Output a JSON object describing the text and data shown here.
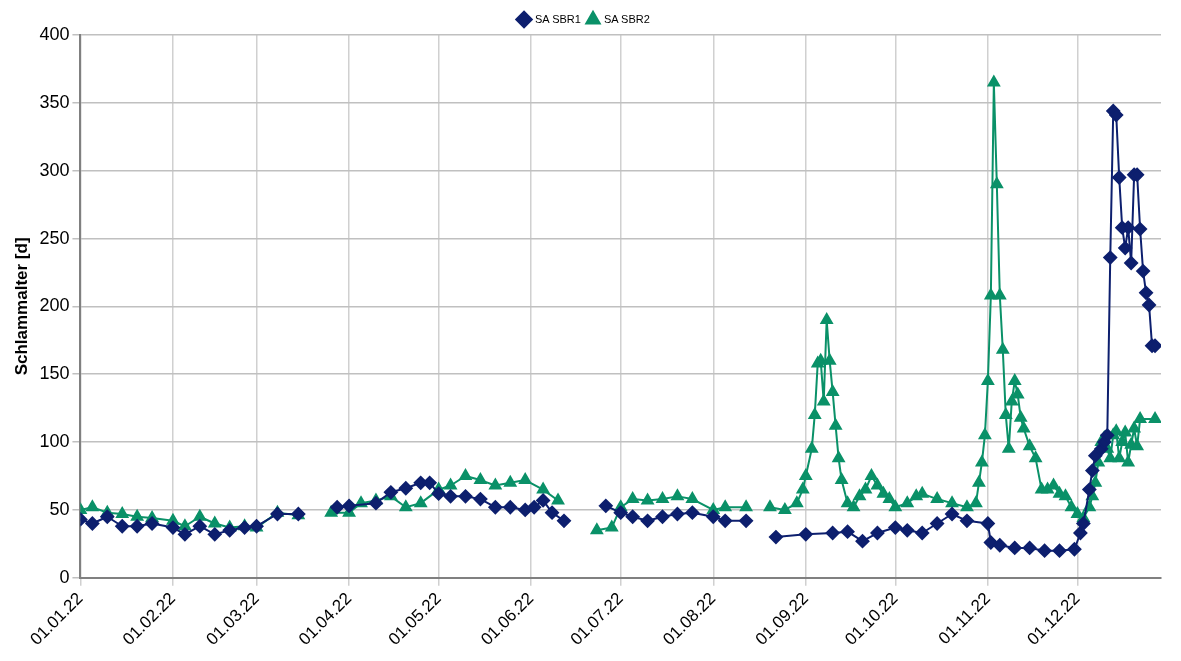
{
  "chart_data": {
    "type": "line",
    "ylabel": "Schlammalter [d]",
    "legend": "top",
    "grid": true,
    "xlim": [
      "2022-01-01",
      "2022-12-29"
    ],
    "xticks": [
      {
        "value": "2022-01-01",
        "label": "01.01.22"
      },
      {
        "value": "2022-02-01",
        "label": "01.02.22"
      },
      {
        "value": "2022-03-01",
        "label": "01.03.22"
      },
      {
        "value": "2022-04-01",
        "label": "01.04.22"
      },
      {
        "value": "2022-05-01",
        "label": "01.05.22"
      },
      {
        "value": "2022-06-01",
        "label": "01.06.22"
      },
      {
        "value": "2022-07-01",
        "label": "01.07.22"
      },
      {
        "value": "2022-08-01",
        "label": "01.08.22"
      },
      {
        "value": "2022-09-01",
        "label": "01.09.22"
      },
      {
        "value": "2022-10-01",
        "label": "01.10.22"
      },
      {
        "value": "2022-11-01",
        "label": "01.11.22"
      },
      {
        "value": "2022-12-01",
        "label": "01.12.22"
      }
    ],
    "ylim": [
      0,
      400
    ],
    "yticks": [
      0,
      50,
      100,
      150,
      200,
      250,
      300,
      350,
      400
    ],
    "series": [
      {
        "name": "SA SBR1",
        "color": "#0d1f6e",
        "marker": "diamond",
        "x": [
          "2022-01-01",
          "2022-01-05",
          "2022-01-10",
          "2022-01-15",
          "2022-01-20",
          "2022-01-25",
          "2022-02-01",
          "2022-02-05",
          "2022-02-10",
          "2022-02-15",
          "2022-02-20",
          "2022-02-25",
          "2022-03-01",
          "2022-03-08",
          "2022-03-15",
          "2022-03-22",
          "2022-03-28",
          "2022-04-01",
          "2022-04-10",
          "2022-04-15",
          "2022-04-20",
          "2022-04-25",
          "2022-04-28",
          "2022-05-01",
          "2022-05-05",
          "2022-05-10",
          "2022-05-15",
          "2022-05-20",
          "2022-05-25",
          "2022-05-30",
          "2022-06-02",
          "2022-06-05",
          "2022-06-08",
          "2022-06-12",
          "2022-06-20",
          "2022-06-26",
          "2022-07-01",
          "2022-07-05",
          "2022-07-10",
          "2022-07-15",
          "2022-07-20",
          "2022-07-25",
          "2022-08-01",
          "2022-08-05",
          "2022-08-12",
          "2022-08-17",
          "2022-08-22",
          "2022-09-01",
          "2022-09-10",
          "2022-09-15",
          "2022-09-20",
          "2022-09-25",
          "2022-10-01",
          "2022-10-05",
          "2022-10-10",
          "2022-10-15",
          "2022-10-20",
          "2022-10-25",
          "2022-11-01",
          "2022-11-02",
          "2022-11-05",
          "2022-11-10",
          "2022-11-15",
          "2022-11-20",
          "2022-11-25",
          "2022-11-30",
          "2022-12-02",
          "2022-12-03",
          "2022-12-05",
          "2022-12-06",
          "2022-12-07",
          "2022-12-09",
          "2022-12-10",
          "2022-12-11",
          "2022-12-12",
          "2022-12-13",
          "2022-12-14",
          "2022-12-15",
          "2022-12-16",
          "2022-12-17",
          "2022-12-18",
          "2022-12-19",
          "2022-12-20",
          "2022-12-21",
          "2022-12-22",
          "2022-12-23",
          "2022-12-24",
          "2022-12-25",
          "2022-12-26",
          "2022-12-27"
        ],
        "values": [
          43,
          40,
          45,
          38,
          38,
          40,
          37,
          32,
          38,
          32,
          35,
          37,
          38,
          47,
          47,
          null,
          52,
          53,
          55,
          63,
          66,
          70,
          70,
          62,
          60,
          60,
          58,
          52,
          52,
          50,
          52,
          57,
          48,
          42,
          null,
          53,
          48,
          45,
          42,
          45,
          47,
          48,
          45,
          42,
          42,
          null,
          30,
          32,
          33,
          34,
          27,
          33,
          37,
          35,
          33,
          40,
          47,
          42,
          40,
          26,
          24,
          22,
          22,
          20,
          20,
          21,
          33,
          40,
          65,
          79,
          90,
          95,
          100,
          105,
          236,
          344,
          341,
          295,
          258,
          243,
          258,
          232,
          297,
          297,
          257,
          226,
          210,
          201,
          171,
          171
        ]
      },
      {
        "name": "SA SBR2",
        "color": "#0a9168",
        "marker": "triangle",
        "x": [
          "2022-01-01",
          "2022-01-05",
          "2022-01-10",
          "2022-01-15",
          "2022-01-20",
          "2022-01-25",
          "2022-02-01",
          "2022-02-05",
          "2022-02-10",
          "2022-02-15",
          "2022-02-20",
          "2022-02-25",
          "2022-03-01",
          "2022-03-08",
          "2022-03-15",
          "2022-03-20",
          "2022-03-26",
          "2022-04-01",
          "2022-04-05",
          "2022-04-10",
          "2022-04-15",
          "2022-04-20",
          "2022-04-25",
          "2022-05-01",
          "2022-05-05",
          "2022-05-10",
          "2022-05-15",
          "2022-05-20",
          "2022-05-25",
          "2022-05-30",
          "2022-06-05",
          "2022-06-10",
          "2022-06-17",
          "2022-06-23",
          "2022-06-28",
          "2022-07-01",
          "2022-07-05",
          "2022-07-10",
          "2022-07-15",
          "2022-07-20",
          "2022-07-25",
          "2022-08-01",
          "2022-08-05",
          "2022-08-12",
          "2022-08-16",
          "2022-08-20",
          "2022-08-25",
          "2022-08-29",
          "2022-08-31",
          "2022-09-01",
          "2022-09-03",
          "2022-09-04",
          "2022-09-05",
          "2022-09-06",
          "2022-09-07",
          "2022-09-08",
          "2022-09-09",
          "2022-09-10",
          "2022-09-11",
          "2022-09-12",
          "2022-09-13",
          "2022-09-15",
          "2022-09-17",
          "2022-09-19",
          "2022-09-21",
          "2022-09-23",
          "2022-09-25",
          "2022-09-27",
          "2022-09-29",
          "2022-10-01",
          "2022-10-05",
          "2022-10-08",
          "2022-10-10",
          "2022-10-15",
          "2022-10-20",
          "2022-10-25",
          "2022-10-28",
          "2022-10-29",
          "2022-10-30",
          "2022-10-31",
          "2022-11-01",
          "2022-11-02",
          "2022-11-03",
          "2022-11-04",
          "2022-11-05",
          "2022-11-06",
          "2022-11-07",
          "2022-11-08",
          "2022-11-09",
          "2022-11-10",
          "2022-11-11",
          "2022-11-12",
          "2022-11-13",
          "2022-11-15",
          "2022-11-17",
          "2022-11-19",
          "2022-11-21",
          "2022-11-23",
          "2022-11-25",
          "2022-11-27",
          "2022-11-29",
          "2022-12-01",
          "2022-12-03",
          "2022-12-05",
          "2022-12-06",
          "2022-12-07",
          "2022-12-08",
          "2022-12-09",
          "2022-12-10",
          "2022-12-11",
          "2022-12-12",
          "2022-12-13",
          "2022-12-14",
          "2022-12-15",
          "2022-12-16",
          "2022-12-17",
          "2022-12-18",
          "2022-12-19",
          "2022-12-20",
          "2022-12-21",
          "2022-12-22",
          "2022-12-27"
        ],
        "values": [
          50,
          52,
          48,
          47,
          45,
          44,
          42,
          38,
          45,
          40,
          37,
          38,
          37,
          48,
          46,
          null,
          48,
          48,
          55,
          57,
          60,
          52,
          55,
          65,
          68,
          75,
          72,
          68,
          70,
          72,
          65,
          57,
          null,
          35,
          37,
          52,
          58,
          57,
          58,
          60,
          58,
          50,
          52,
          52,
          null,
          52,
          50,
          55,
          65,
          75,
          95,
          120,
          158,
          160,
          130,
          190,
          160,
          137,
          112,
          88,
          72,
          55,
          52,
          60,
          65,
          75,
          68,
          62,
          58,
          52,
          55,
          60,
          62,
          58,
          55,
          52,
          55,
          70,
          85,
          105,
          145,
          208,
          365,
          290,
          208,
          168,
          120,
          95,
          130,
          145,
          135,
          118,
          110,
          97,
          88,
          65,
          65,
          68,
          62,
          60,
          52,
          47,
          44,
          52,
          60,
          70,
          85,
          100,
          103,
          95,
          88,
          105,
          108,
          88,
          100,
          107,
          85,
          98,
          110,
          97,
          117,
          117
        ]
      }
    ]
  }
}
